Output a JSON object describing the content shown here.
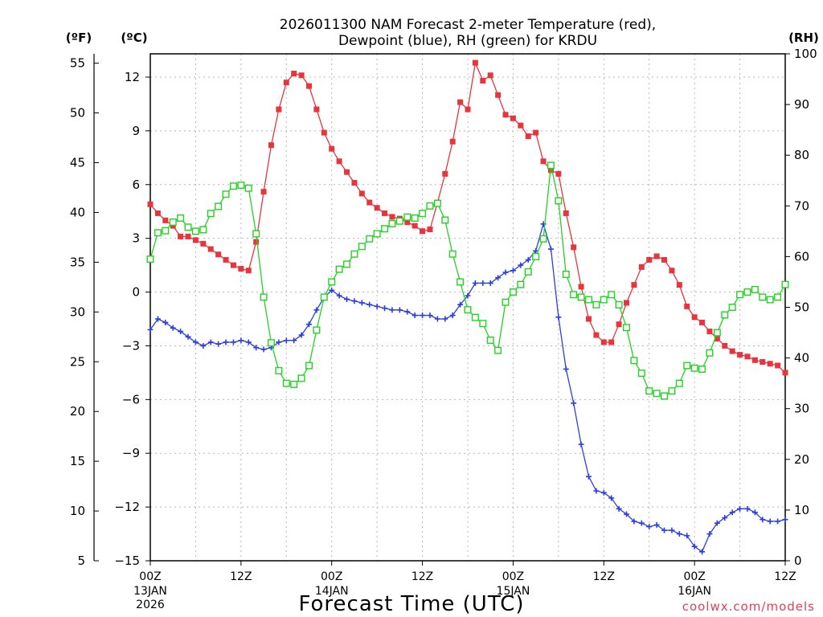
{
  "title": {
    "line1": "2026011300 NAM Forecast 2-meter Temperature (red),",
    "line2": "Dewpoint (blue), RH (green) for KRDU"
  },
  "units": {
    "left_f": "(ºF)",
    "left_c": "(ºC)",
    "right": "(RH)"
  },
  "credit": "coolwx.com/models",
  "colors": {
    "temperature": "#e8343c",
    "dewpoint": "#2b3fe0",
    "rh": "#22d322",
    "grid": "#b8b8b8"
  },
  "chart_data": {
    "type": "line",
    "xlabel": "Forecast Time (UTC)",
    "x_hours": [
      0,
      1,
      2,
      3,
      4,
      5,
      6,
      7,
      8,
      9,
      10,
      11,
      12,
      13,
      14,
      15,
      16,
      17,
      18,
      19,
      20,
      21,
      22,
      23,
      24,
      25,
      26,
      27,
      28,
      29,
      30,
      31,
      32,
      33,
      34,
      35,
      36,
      37,
      38,
      39,
      40,
      41,
      42,
      43,
      44,
      45,
      46,
      47,
      48,
      49,
      50,
      51,
      52,
      53,
      54,
      55,
      56,
      57,
      58,
      59,
      60,
      61,
      62,
      63,
      64,
      65,
      66,
      67,
      68,
      69,
      70,
      71,
      72,
      73,
      74,
      75,
      76,
      77,
      78,
      79,
      80,
      81,
      82,
      83,
      84
    ],
    "xlim": [
      0,
      84
    ],
    "x_ticks": [
      {
        "hour": 0,
        "label": "00Z",
        "sub1": "13JAN",
        "sub2": "2026"
      },
      {
        "hour": 12,
        "label": "12Z",
        "sub1": "",
        "sub2": ""
      },
      {
        "hour": 24,
        "label": "00Z",
        "sub1": "14JAN",
        "sub2": ""
      },
      {
        "hour": 36,
        "label": "12Z",
        "sub1": "",
        "sub2": ""
      },
      {
        "hour": 48,
        "label": "00Z",
        "sub1": "15JAN",
        "sub2": ""
      },
      {
        "hour": 60,
        "label": "12Z",
        "sub1": "",
        "sub2": ""
      },
      {
        "hour": 72,
        "label": "00Z",
        "sub1": "16JAN",
        "sub2": ""
      },
      {
        "hour": 84,
        "label": "12Z",
        "sub1": "",
        "sub2": ""
      }
    ],
    "y_celsius": {
      "ylim": [
        -15,
        13.3
      ],
      "ticks": [
        -15,
        -12,
        -9,
        -6,
        -3,
        0,
        3,
        6,
        9,
        12
      ],
      "tick_labels": [
        "−15",
        "−12",
        "−9",
        "−6",
        "−3",
        "0",
        "3",
        "6",
        "9",
        "12"
      ]
    },
    "y_fahrenheit": {
      "ticks": [
        5,
        10,
        15,
        20,
        25,
        30,
        35,
        40,
        45,
        50,
        55
      ],
      "tick_labels": [
        "5",
        "10",
        "15",
        "20",
        "25",
        "30",
        "35",
        "40",
        "45",
        "50",
        "55"
      ]
    },
    "y_rh": {
      "ylim": [
        0,
        100
      ],
      "ticks": [
        0,
        10,
        20,
        30,
        40,
        50,
        60,
        70,
        80,
        90,
        100
      ],
      "tick_labels": [
        "0",
        "10",
        "20",
        "30",
        "40",
        "50",
        "60",
        "70",
        "80",
        "90",
        "100"
      ]
    },
    "series": [
      {
        "name": "Temperature",
        "axis": "celsius",
        "marker": "filled-square",
        "values": [
          4.9,
          4.4,
          4.0,
          3.7,
          3.1,
          3.1,
          2.9,
          2.7,
          2.4,
          2.1,
          1.8,
          1.5,
          1.3,
          1.2,
          2.8,
          5.6,
          8.2,
          10.2,
          11.7,
          12.2,
          12.1,
          11.5,
          10.2,
          8.9,
          8.0,
          7.3,
          6.7,
          6.1,
          5.5,
          5.0,
          4.7,
          4.4,
          4.2,
          4.1,
          3.9,
          3.7,
          3.4,
          3.5,
          5.0,
          6.6,
          8.4,
          10.6,
          10.2,
          12.8,
          11.8,
          12.1,
          11.0,
          9.9,
          9.7,
          9.3,
          8.7,
          8.9,
          7.3,
          6.8,
          6.6,
          4.4,
          2.5,
          0.3,
          -1.5,
          -2.4,
          -2.8,
          -2.8,
          -1.8,
          -0.6,
          0.4,
          1.4,
          1.8,
          2.0,
          1.8,
          1.2,
          0.4,
          -0.8,
          -1.4,
          -1.7,
          -2.2,
          -2.6,
          -3.0,
          -3.3,
          -3.5,
          -3.6,
          -3.8,
          -3.9,
          -4.0,
          -4.1,
          -4.5
        ]
      },
      {
        "name": "Dewpoint",
        "axis": "celsius",
        "marker": "plus",
        "values": [
          -2.1,
          -1.5,
          -1.7,
          -2.0,
          -2.2,
          -2.5,
          -2.8,
          -3.0,
          -2.8,
          -2.9,
          -2.8,
          -2.8,
          -2.7,
          -2.8,
          -3.1,
          -3.2,
          -3.1,
          -2.8,
          -2.7,
          -2.7,
          -2.4,
          -1.8,
          -1.0,
          -0.3,
          0.1,
          -0.2,
          -0.4,
          -0.5,
          -0.6,
          -0.7,
          -0.8,
          -0.9,
          -1.0,
          -1.0,
          -1.1,
          -1.3,
          -1.3,
          -1.3,
          -1.5,
          -1.5,
          -1.3,
          -0.7,
          -0.2,
          0.5,
          0.5,
          0.5,
          0.8,
          1.1,
          1.2,
          1.5,
          1.8,
          2.3,
          3.8,
          2.4,
          -1.4,
          -4.3,
          -6.2,
          -8.5,
          -10.3,
          -11.1,
          -11.2,
          -11.5,
          -12.1,
          -12.4,
          -12.8,
          -12.9,
          -13.1,
          -13.0,
          -13.3,
          -13.3,
          -13.5,
          -13.6,
          -14.2,
          -14.5,
          -13.5,
          -12.9,
          -12.6,
          -12.3,
          -12.1,
          -12.1,
          -12.3,
          -12.7,
          -12.8,
          -12.8,
          -12.7
        ]
      },
      {
        "name": "RH",
        "axis": "rh",
        "marker": "open-square",
        "values": [
          59.5,
          64.7,
          65.1,
          66.8,
          67.6,
          65.8,
          65.0,
          65.3,
          68.5,
          69.9,
          72.3,
          73.9,
          74.1,
          73.5,
          64.5,
          52.0,
          43.0,
          37.5,
          35.0,
          34.8,
          36.0,
          38.5,
          45.5,
          52.0,
          55.0,
          57.5,
          58.5,
          60.5,
          62.0,
          63.5,
          64.5,
          65.5,
          66.5,
          67.0,
          67.8,
          67.6,
          68.5,
          70.0,
          70.5,
          67.2,
          60.5,
          55.0,
          49.5,
          48.0,
          46.8,
          43.5,
          41.5,
          51.0,
          53.0,
          54.5,
          57.0,
          60.0,
          63.5,
          78.0,
          71.0,
          56.5,
          52.5,
          52.0,
          51.5,
          50.5,
          51.5,
          52.5,
          50.5,
          46.0,
          39.5,
          37.0,
          33.5,
          33.0,
          32.5,
          33.5,
          35.0,
          38.5,
          38.0,
          37.8,
          41.0,
          45.0,
          48.5,
          50.0,
          52.5,
          53.0,
          53.5,
          52.0,
          51.5,
          52.0,
          54.5
        ]
      }
    ]
  }
}
